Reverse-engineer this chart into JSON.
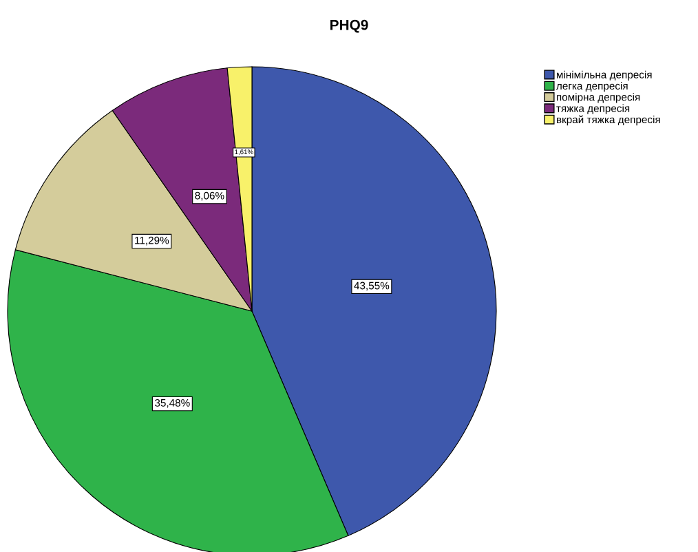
{
  "chart_data": {
    "type": "pie",
    "title": "PHQ9",
    "categories": [
      "мінімільна депресія",
      "легка депресія",
      "помірна депресія",
      "тяжка депресія",
      "вкрай тяжка депресія"
    ],
    "values": [
      43.55,
      35.48,
      11.29,
      8.06,
      1.61
    ],
    "value_labels": [
      "43,55%",
      "35,48%",
      "11,29%",
      "8,06%",
      "1,61%"
    ],
    "colors": [
      "#3e58ac",
      "#2fb34a",
      "#d4cc9b",
      "#7b2a7b",
      "#f8f16a"
    ],
    "legend": "top right"
  }
}
